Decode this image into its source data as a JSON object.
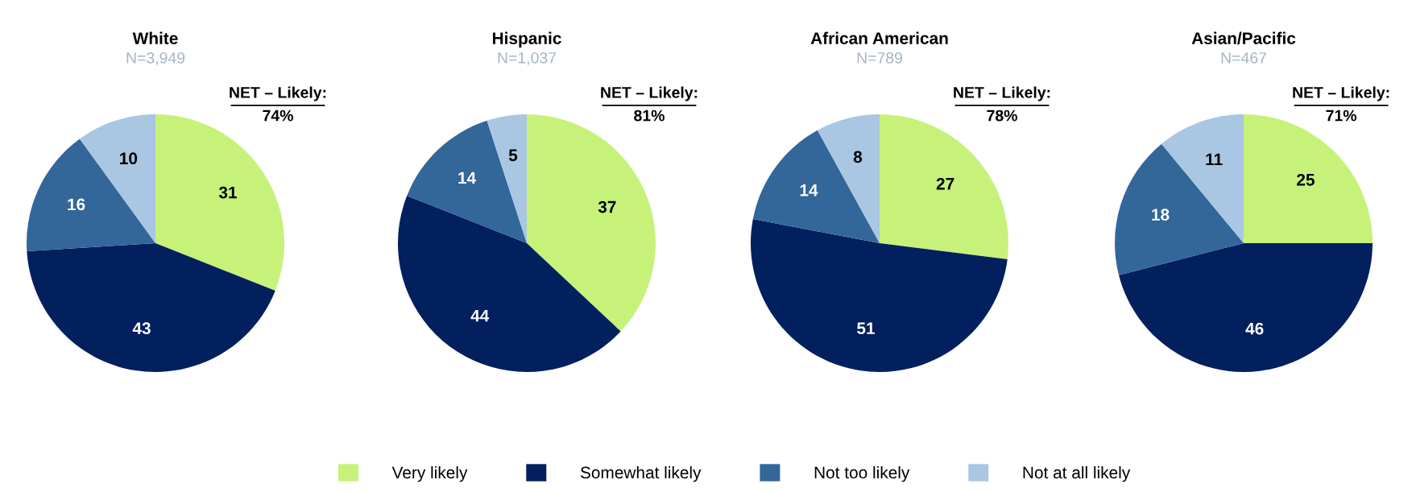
{
  "chart_data": [
    {
      "type": "pie",
      "title": "White",
      "subtitle": "N=3,949",
      "annotations": [
        "NET – Likely:",
        "74%"
      ],
      "categories": [
        "Very likely",
        "Somewhat likely",
        "Not too likely",
        "Not at all likely"
      ],
      "values": [
        31,
        43,
        16,
        10
      ],
      "colors": [
        "#c6f27a",
        "#021f5e",
        "#336699",
        "#a9c6e3"
      ],
      "data_labels": true,
      "legend": "bottom"
    },
    {
      "type": "pie",
      "title": "Hispanic",
      "subtitle": "N=1,037",
      "annotations": [
        "NET – Likely:",
        "81%"
      ],
      "values": [
        37,
        44,
        14,
        5
      ],
      "colors": [
        "#c6f27a",
        "#021f5e",
        "#336699",
        "#a9c6e3"
      ],
      "data_labels": true
    },
    {
      "type": "pie",
      "title": "African American",
      "subtitle": "N=789",
      "annotations": [
        "NET – Likely:",
        "78%"
      ],
      "values": [
        27,
        51,
        14,
        8
      ],
      "colors": [
        "#c6f27a",
        "#021f5e",
        "#336699",
        "#a9c6e3"
      ],
      "data_labels": true
    },
    {
      "type": "pie",
      "title": "Asian/Pacific",
      "subtitle": "N=467",
      "annotations": [
        "NET – Likely:",
        "71%"
      ],
      "values": [
        25,
        46,
        18,
        11
      ],
      "colors": [
        "#c6f27a",
        "#021f5e",
        "#336699",
        "#a9c6e3"
      ],
      "data_labels": true
    }
  ]
}
